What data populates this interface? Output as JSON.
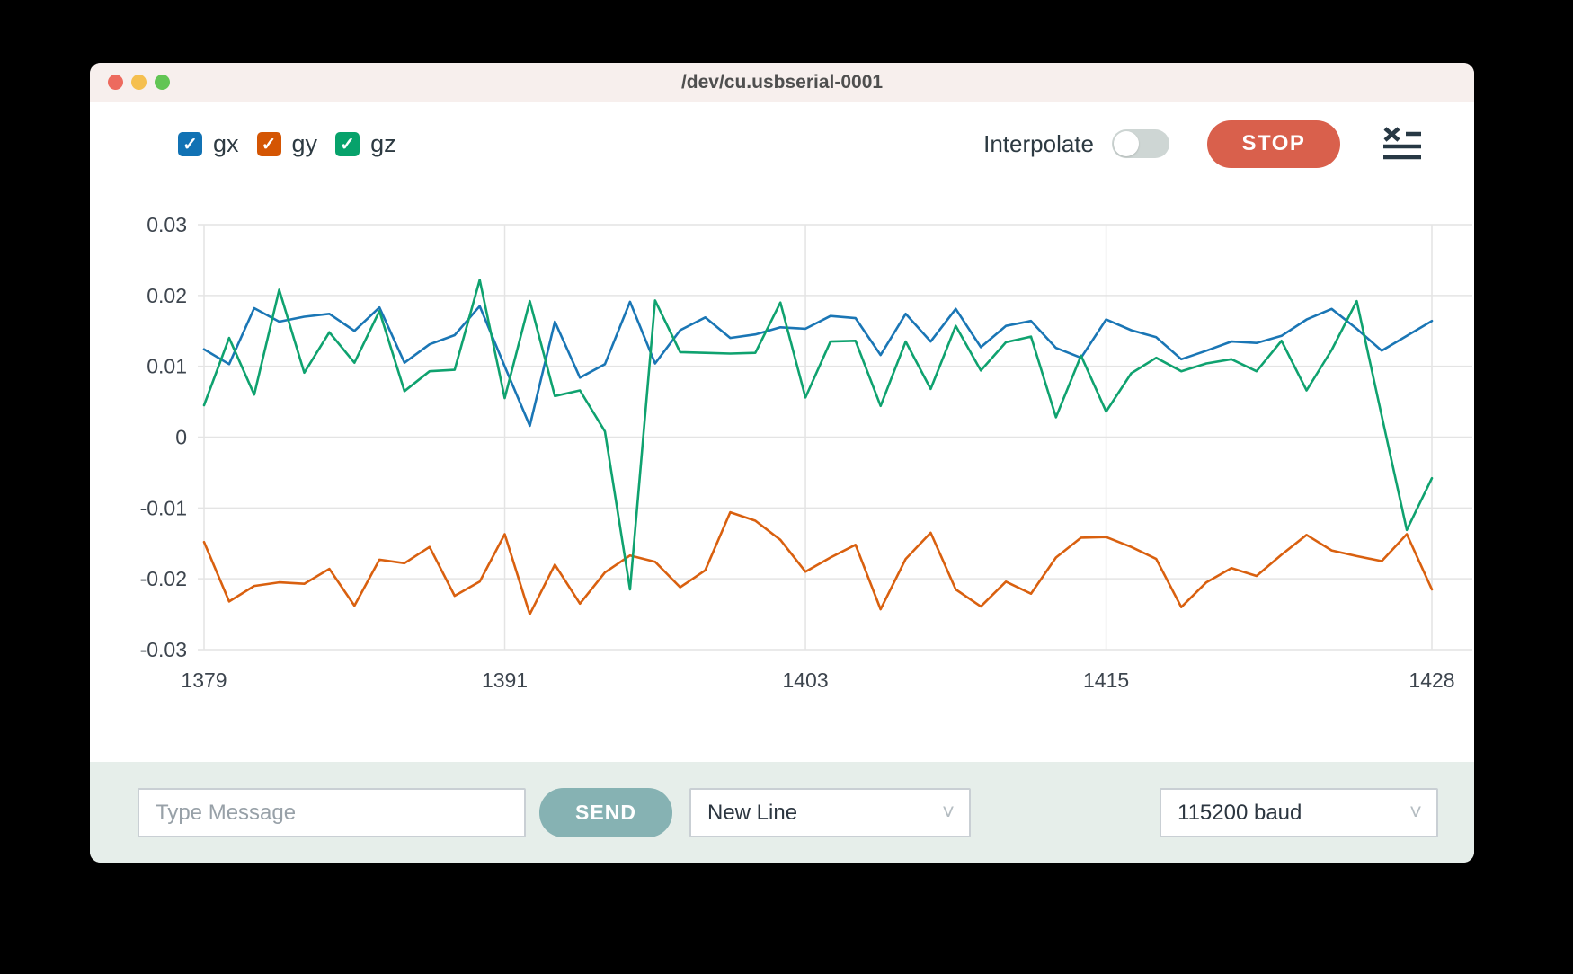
{
  "window": {
    "title": "/dev/cu.usbserial-0001"
  },
  "toolbar": {
    "legend": [
      {
        "id": "gx",
        "label": "gx",
        "color": "#1172b4",
        "checked": true
      },
      {
        "id": "gy",
        "label": "gy",
        "color": "#d45503",
        "checked": true
      },
      {
        "id": "gz",
        "label": "gz",
        "color": "#07a26b",
        "checked": true
      }
    ],
    "interpolate_label": "Interpolate",
    "interpolate_on": false,
    "stop_label": "STOP",
    "check_glyph": "✓"
  },
  "chart_data": {
    "type": "line",
    "title": "",
    "xlabel": "",
    "ylabel": "",
    "xlim": [
      1379,
      1428
    ],
    "ylim": [
      -0.03,
      0.03
    ],
    "grid": true,
    "legend_position": "toolbar-top-left",
    "xticks": [
      1379,
      1391,
      1403,
      1415,
      1428
    ],
    "yticks": [
      {
        "v": 0.03,
        "label": "0.03"
      },
      {
        "v": 0.02,
        "label": "0.02"
      },
      {
        "v": 0.01,
        "label": "0.01"
      },
      {
        "v": 0,
        "label": "0"
      },
      {
        "v": -0.01,
        "label": "-0.01"
      },
      {
        "v": -0.02,
        "label": "-0.02"
      },
      {
        "v": -0.03,
        "label": "-0.03"
      }
    ],
    "x": [
      1379,
      1380,
      1381,
      1382,
      1383,
      1384,
      1385,
      1386,
      1387,
      1388,
      1389,
      1390,
      1391,
      1392,
      1393,
      1394,
      1395,
      1396,
      1397,
      1398,
      1399,
      1400,
      1401,
      1402,
      1403,
      1404,
      1405,
      1406,
      1407,
      1408,
      1409,
      1410,
      1411,
      1412,
      1413,
      1414,
      1415,
      1416,
      1417,
      1418,
      1419,
      1420,
      1421,
      1422,
      1423,
      1424,
      1425,
      1426,
      1427,
      1428
    ],
    "series": [
      {
        "name": "gx",
        "color": "#1a76b5",
        "values": [
          0.0124,
          0.0103,
          0.0182,
          0.0163,
          0.017,
          0.0174,
          0.015,
          0.0183,
          0.0105,
          0.0131,
          0.0144,
          0.0185,
          0.01,
          0.0016,
          0.0163,
          0.0084,
          0.0103,
          0.0191,
          0.0104,
          0.0151,
          0.0169,
          0.014,
          0.0145,
          0.0155,
          0.0153,
          0.0171,
          0.0168,
          0.0116,
          0.0174,
          0.0135,
          0.0181,
          0.0127,
          0.0157,
          0.0164,
          0.0126,
          0.0112,
          0.0166,
          0.0151,
          0.0141,
          0.011,
          0.0122,
          0.0135,
          0.0133,
          0.0143,
          0.0166,
          0.0181,
          0.0153,
          0.0122,
          0.0143,
          0.0164
        ]
      },
      {
        "name": "gy",
        "color": "#d9600f",
        "values": [
          -0.0148,
          -0.0232,
          -0.021,
          -0.0205,
          -0.0207,
          -0.0186,
          -0.0238,
          -0.0173,
          -0.0178,
          -0.0155,
          -0.0224,
          -0.0204,
          -0.0137,
          -0.025,
          -0.018,
          -0.0235,
          -0.0191,
          -0.0167,
          -0.0176,
          -0.0212,
          -0.0188,
          -0.0106,
          -0.0118,
          -0.0145,
          -0.019,
          -0.017,
          -0.0152,
          -0.0243,
          -0.0172,
          -0.0135,
          -0.0215,
          -0.0239,
          -0.0204,
          -0.0221,
          -0.017,
          -0.0142,
          -0.0141,
          -0.0155,
          -0.0172,
          -0.024,
          -0.0205,
          -0.0185,
          -0.0196,
          -0.0166,
          -0.0138,
          -0.016,
          -0.0168,
          -0.0175,
          -0.0137,
          -0.0215
        ]
      },
      {
        "name": "gz",
        "color": "#0fa26f",
        "values": [
          0.0045,
          0.014,
          0.006,
          0.0208,
          0.0091,
          0.0148,
          0.0105,
          0.0178,
          0.0065,
          0.0093,
          0.0095,
          0.0222,
          0.0055,
          0.0192,
          0.0058,
          0.0066,
          0.0008,
          -0.0215,
          0.0193,
          0.012,
          0.0119,
          0.0118,
          0.0119,
          0.019,
          0.0056,
          0.0135,
          0.0136,
          0.0044,
          0.0135,
          0.0068,
          0.0157,
          0.0094,
          0.0134,
          0.0142,
          0.0028,
          0.0115,
          0.0036,
          0.009,
          0.0112,
          0.0093,
          0.0104,
          0.011,
          0.0093,
          0.0136,
          0.0066,
          0.0123,
          0.0192,
          0.003,
          -0.0131,
          -0.0058
        ]
      }
    ]
  },
  "message_bar": {
    "input_placeholder": "Type Message",
    "input_value": "",
    "send_label": "SEND",
    "line_ending": {
      "selected": "New Line"
    },
    "baud": {
      "selected": "115200 baud"
    }
  },
  "colors": {
    "titlebar_bg": "#f7efed",
    "bottombar_bg": "#e6eeea",
    "stop_button": "#d9604c",
    "send_button": "#86b2b3",
    "grid": "#e4e4e4",
    "axis_text": "#3d454e"
  }
}
